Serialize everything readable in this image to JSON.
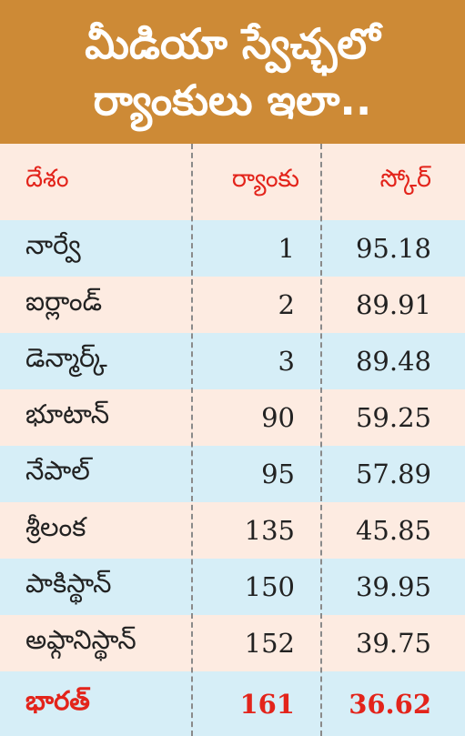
{
  "title": {
    "line1": "మీడియా స్వేచ్ఛలో",
    "line2": "ర్యాంకులు ఇలా.."
  },
  "columns": {
    "country": "దేశం",
    "rank": "ర్యాంకు",
    "score": "స్కోర్"
  },
  "rows": [
    {
      "country": "నార్వే",
      "rank": "1",
      "score": "95.18"
    },
    {
      "country": "ఐర్లాండ్",
      "rank": "2",
      "score": "89.91"
    },
    {
      "country": "డెన్మార్క్",
      "rank": "3",
      "score": "89.48"
    },
    {
      "country": "భూటాన్",
      "rank": "90",
      "score": "59.25"
    },
    {
      "country": "నేపాల్",
      "rank": "95",
      "score": "57.89"
    },
    {
      "country": "శ్రీలంక",
      "rank": "135",
      "score": "45.85"
    },
    {
      "country": "పాకిస్థాన్",
      "rank": "150",
      "score": "39.95"
    },
    {
      "country": "అఫ్గానిస్థాన్",
      "rank": "152",
      "score": "39.75"
    }
  ],
  "highlight_row": {
    "country": "భారత్",
    "rank": "161",
    "score": "36.62"
  },
  "colors": {
    "header_bg": "#cd8a36",
    "row_peach": "#fdebe1",
    "row_blue": "#d6eef7",
    "accent_red": "#e3241b"
  }
}
